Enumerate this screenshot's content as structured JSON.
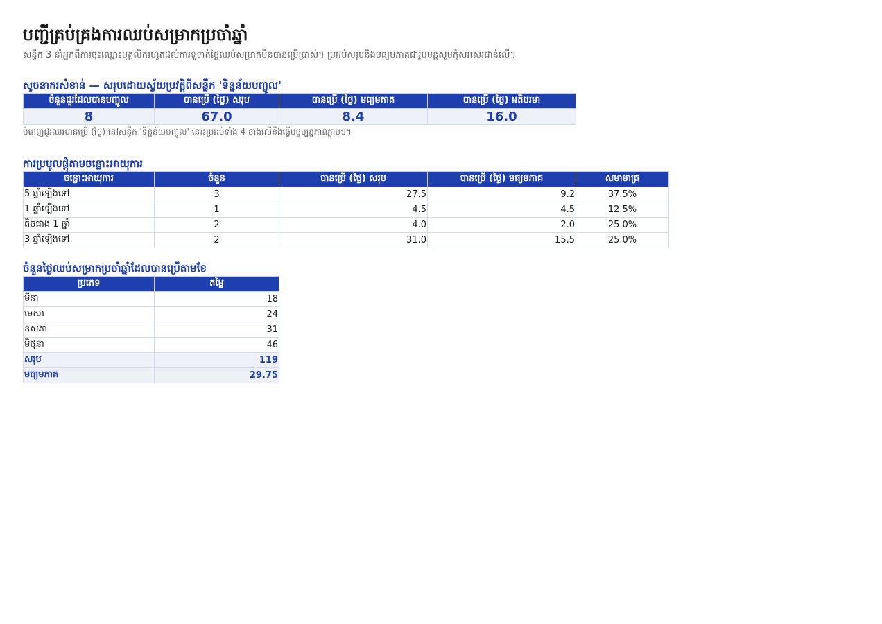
{
  "header": {
    "title": "បញ្ជីគ្រប់គ្រងការឈប់សម្រាកប្រចាំឆ្នាំ",
    "subtitle": "សន្លឹក 3 នាំអ្នកពីការចុះឈ្មោះបុគ្គលិករហូតដល់ការទូទាត់ថ្ងៃឈប់សម្រាកមិនបានប្រើប្រាស់។ ប្រអប់សរុបនិងមធ្យមភាគជារូបមន្តសូមកុំសរសេរជាន់លើ។"
  },
  "kpi": {
    "section_title": "សូចនាករសំខាន់ — សរុបដោយស្វ័យប្រវត្តិពីសន្លឹក 'ទិន្នន័យបញ្ចូល'",
    "headers": [
      "ចំនួនជួរដែលបានបញ្ចូល",
      "បានប្រើ (ថ្ងៃ) សរុប",
      "បានប្រើ (ថ្ងៃ) មធ្យមភាគ",
      "បានប្រើ (ថ្ងៃ) អតិបរមា"
    ],
    "values": [
      "8",
      "67.0",
      "8.4",
      "16.0"
    ],
    "note": "បំពេញជួរឈរបានប្រើ (ថ្ងៃ) នៅសន្លឹក 'ទិន្នន័យបញ្ចូល' នោះប្រអប់ទាំង 4 ខាងលើនឹងធ្វើបច្ចុប្បន្នភាពភ្លាមៗ។"
  },
  "tenure": {
    "section_title": "ការប្រមូលផ្តុំតាមចន្លោះអាយុការ",
    "headers": [
      "ចន្លោះអាយុការ",
      "ចំនួន",
      "បានប្រើ (ថ្ងៃ) សរុប",
      "បានប្រើ (ថ្ងៃ) មធ្យមភាគ",
      "សមាមាត្រ"
    ],
    "rows": [
      [
        "5 ឆ្នាំឡើងទៅ",
        "3",
        "27.5",
        "9.2",
        "37.5%"
      ],
      [
        "1 ឆ្នាំឡើងទៅ",
        "1",
        "4.5",
        "4.5",
        "12.5%"
      ],
      [
        "តិចជាង 1 ឆ្នាំ",
        "2",
        "4.0",
        "2.0",
        "25.0%"
      ],
      [
        "3 ឆ្នាំឡើងទៅ",
        "2",
        "31.0",
        "15.5",
        "25.0%"
      ]
    ]
  },
  "monthly": {
    "section_title": "ចំនួនថ្ងៃឈប់សម្រាកប្រចាំឆ្នាំដែលបានប្រើតាមខែ",
    "headers": [
      "ប្រភេទ",
      "តម្លៃ"
    ],
    "rows": [
      [
        "មីនា",
        "18"
      ],
      [
        "មេសា",
        "24"
      ],
      [
        "ឧសភា",
        "31"
      ],
      [
        "មិថុនា",
        "46"
      ]
    ],
    "summary": [
      [
        "សរុប",
        "119"
      ],
      [
        "មធ្យមភាគ",
        "29.75"
      ]
    ]
  }
}
